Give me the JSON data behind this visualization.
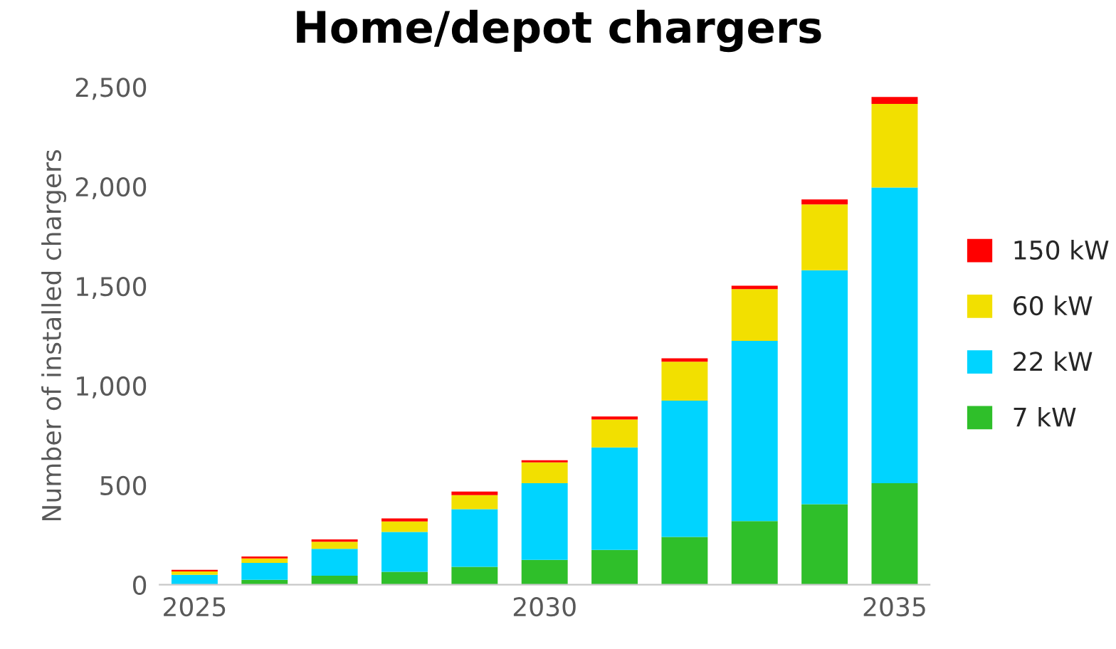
{
  "chart_data": {
    "type": "bar",
    "title": "Home/depot chargers",
    "ylabel": "Number of installed chargers",
    "categories": [
      "2025",
      null,
      null,
      null,
      null,
      "2030",
      null,
      null,
      null,
      null,
      "2035"
    ],
    "stacked": true,
    "legend": "right",
    "series": [
      {
        "name": "7 kW",
        "color": "#2fbf2a",
        "values": [
          null,
          25,
          45,
          65,
          90,
          125,
          175,
          240,
          320,
          405,
          510
        ]
      },
      {
        "name": "22 kW",
        "color": "#00d4ff",
        "values": [
          50,
          85,
          135,
          200,
          290,
          385,
          515,
          685,
          905,
          1175,
          1485
        ]
      },
      {
        "name": "60 kW",
        "color": "#f2e000",
        "values": [
          17,
          22,
          36,
          53,
          70,
          105,
          140,
          195,
          260,
          330,
          420
        ]
      },
      {
        "name": "150 kW",
        "color": "#ff0000",
        "values": [
          8,
          10,
          12,
          15,
          18,
          10,
          15,
          17,
          17,
          25,
          35
        ]
      }
    ],
    "ylim": [
      0,
      2500
    ],
    "yticks": [
      0,
      {
        "value": 500,
        "label": "500"
      },
      {
        "value": 1000,
        "label": "1,000"
      },
      {
        "value": 1500,
        "label": "1,500"
      },
      {
        "value": 2000,
        "label": "2,000"
      },
      {
        "value": 2500,
        "label": "2,500"
      }
    ],
    "grid": false
  }
}
